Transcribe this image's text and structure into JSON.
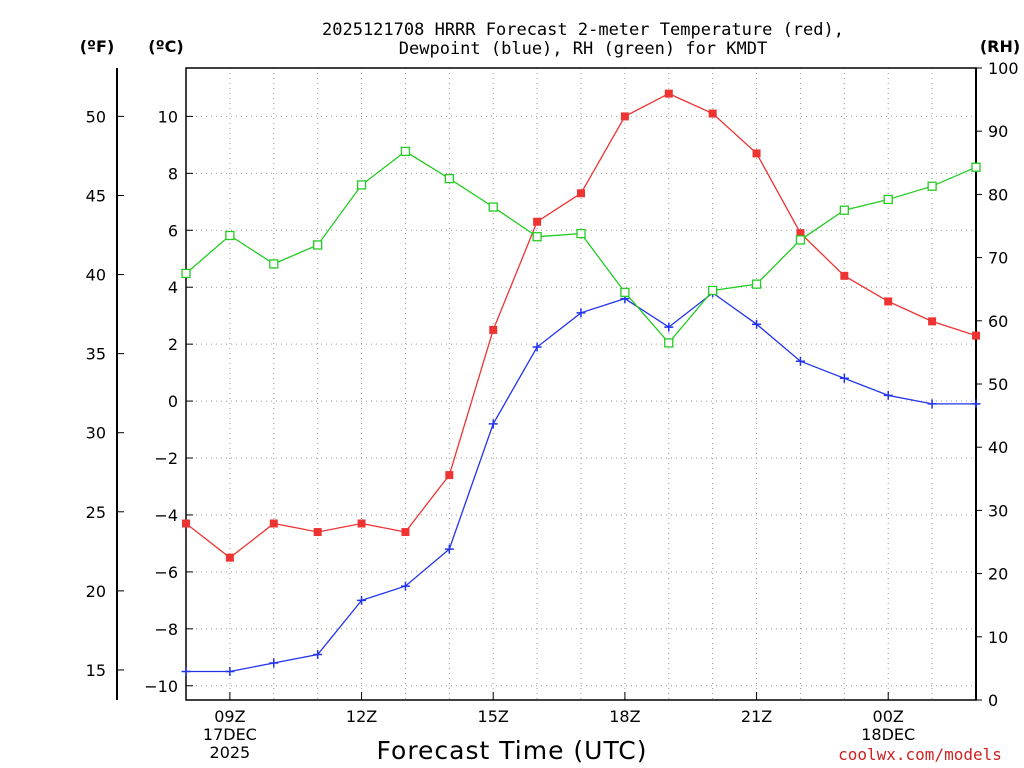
{
  "chart_data": {
    "type": "line",
    "title_lines": [
      "2025121708 HRRR Forecast 2-meter Temperature (red),",
      "Dewpoint (blue), RH (green) for KMDT"
    ],
    "xlabel": "Forecast Time (UTC)",
    "credit": "coolwx.com/models",
    "x_hours": [
      8,
      9,
      10,
      11,
      12,
      13,
      14,
      15,
      16,
      17,
      18,
      19,
      20,
      21,
      22,
      23,
      24,
      25,
      26
    ],
    "xlim": [
      8,
      26
    ],
    "x_ticks": [
      {
        "x": 9,
        "lines": [
          "09Z",
          "17DEC",
          "2025"
        ]
      },
      {
        "x": 12,
        "lines": [
          "12Z"
        ]
      },
      {
        "x": 15,
        "lines": [
          "15Z"
        ]
      },
      {
        "x": 18,
        "lines": [
          "18Z"
        ]
      },
      {
        "x": 21,
        "lines": [
          "21Z"
        ]
      },
      {
        "x": 24,
        "lines": [
          "00Z",
          "18DEC"
        ]
      }
    ],
    "axes": {
      "fahrenheit": {
        "unit_label": "(ºF)",
        "ticks": [
          "15",
          "20",
          "25",
          "30",
          "35",
          "40",
          "45",
          "50"
        ]
      },
      "celsius": {
        "unit_label": "(ºC)",
        "ylim": [
          -10.5,
          11.7
        ],
        "ticks": [
          "-10",
          "-8",
          "-6",
          "-4",
          "-2",
          "0",
          "2",
          "4",
          "6",
          "8",
          "10"
        ]
      },
      "rh": {
        "unit_label": "(RH)",
        "ylim": [
          0,
          100
        ],
        "ticks": [
          "0",
          "10",
          "20",
          "30",
          "40",
          "50",
          "60",
          "70",
          "80",
          "90",
          "100"
        ]
      }
    },
    "series": [
      {
        "name": "Temperature (°C)",
        "color": "#ee3333",
        "marker": "filled-square",
        "axis": "celsius",
        "values": [
          -4.3,
          -5.5,
          -4.3,
          -4.6,
          -4.3,
          -4.6,
          -2.6,
          2.5,
          6.3,
          7.3,
          10.0,
          10.8,
          10.1,
          8.7,
          5.9,
          4.4,
          3.5,
          2.8,
          2.3
        ]
      },
      {
        "name": "Dewpoint (°C)",
        "color": "#2233ee",
        "marker": "plus",
        "axis": "celsius",
        "values": [
          -9.5,
          -9.5,
          -9.2,
          -8.9,
          -7.0,
          -6.5,
          -5.2,
          -0.8,
          1.9,
          3.1,
          3.6,
          2.6,
          3.8,
          2.7,
          1.4,
          0.8,
          0.2,
          -0.1,
          -0.1
        ]
      },
      {
        "name": "RH (%)",
        "color": "#22cc22",
        "marker": "open-square",
        "axis": "rh",
        "values": [
          67.5,
          73.5,
          69,
          72,
          81.5,
          86.8,
          82.5,
          78,
          73.3,
          73.8,
          64.5,
          56.5,
          64.8,
          65.8,
          72.8,
          77.5,
          79.2,
          81.3,
          84.3
        ]
      }
    ],
    "grid": true
  }
}
